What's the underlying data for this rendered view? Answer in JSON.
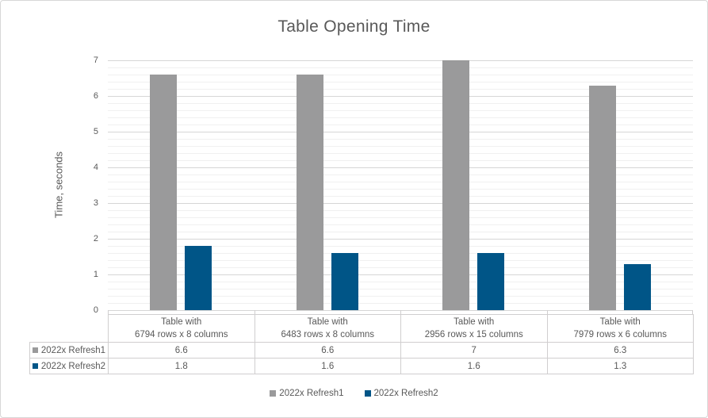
{
  "chart_data": {
    "type": "bar",
    "title": "Table Opening Time",
    "xlabel": "",
    "ylabel": "Time, seconds",
    "categories": [
      "Table with 6794 rows x 8 columns",
      "Table with 6483 rows x 8 columns",
      "Table with 2956 rows x 15 columns",
      "Table with 7979 rows x 6 columns"
    ],
    "categories_wrapped": [
      [
        "Table with",
        "6794 rows x 8 columns"
      ],
      [
        "Table with",
        "6483 rows x 8 columns"
      ],
      [
        "Table with",
        "2956 rows x 15 columns"
      ],
      [
        "Table with",
        "7979 rows x 6 columns"
      ]
    ],
    "series": [
      {
        "name": "2022x Refresh1",
        "color": "#9a9a9b",
        "values": [
          6.6,
          6.6,
          7,
          6.3
        ]
      },
      {
        "name": "2022x Refresh2",
        "color": "#005587",
        "values": [
          1.8,
          1.6,
          1.6,
          1.3
        ]
      }
    ],
    "ylim": [
      0,
      7
    ],
    "y_ticks": [
      0,
      1,
      2,
      3,
      4,
      5,
      6,
      7
    ],
    "y_minor_step": 0.2,
    "grid": true,
    "legend_position": "bottom",
    "data_table_shown": true
  },
  "colors": {
    "title_text": "#595959",
    "axis_text": "#595959",
    "major_grid": "#d6d6d6",
    "minor_grid": "#f0f0f0",
    "table_border": "#d0cecf",
    "frame_border": "#d7d7d7"
  }
}
